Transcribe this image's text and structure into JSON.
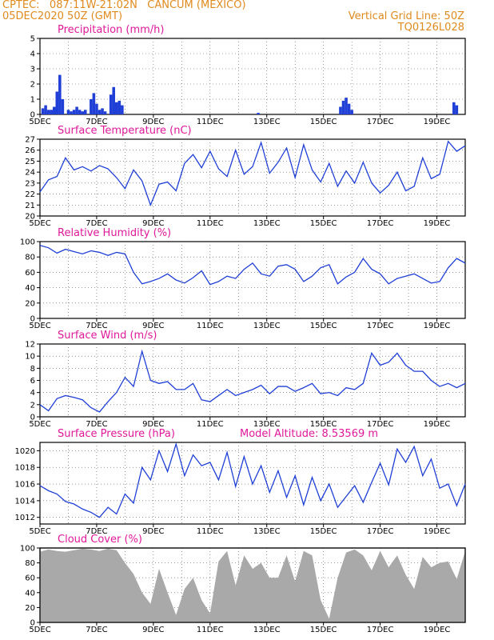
{
  "header": {
    "line1_left": "CPTEC:   087:11W-21:02N   CANCUM (MEXICO)",
    "line2_left": "05DEC2020 50Z (GMT)",
    "line2_right": "Vertical Grid Line: 50Z",
    "line3_right": "TQ0126L028"
  },
  "colors": {
    "header": "#e08a1e",
    "title": "#e0189a",
    "series": "#1f3fd6",
    "bars": "#1f3fd6",
    "cloud": "#a9a9a9"
  },
  "chart_data": [
    {
      "type": "bar",
      "title": "Precipitation (mm/h)",
      "ylim": [
        0,
        5
      ],
      "yticks": [
        0,
        1,
        2,
        3,
        4,
        5
      ],
      "xticks": [
        "5DEC",
        "7DEC",
        "9DEC",
        "11DEC",
        "13DEC",
        "15DEC",
        "17DEC",
        "19DEC"
      ],
      "x": [
        5.1,
        5.2,
        5.3,
        5.4,
        5.5,
        5.6,
        5.7,
        5.8,
        6.0,
        6.1,
        6.2,
        6.3,
        6.4,
        6.5,
        6.6,
        6.8,
        6.9,
        7.0,
        7.1,
        7.2,
        7.3,
        7.5,
        7.6,
        7.7,
        7.8,
        7.9,
        12.7,
        15.6,
        15.7,
        15.8,
        15.9,
        16.0,
        19.6,
        19.7
      ],
      "values": [
        0.4,
        0.6,
        0.3,
        0.3,
        0.5,
        1.5,
        2.6,
        1.0,
        0.3,
        0.2,
        0.3,
        0.5,
        0.3,
        0.2,
        0.3,
        1.0,
        1.4,
        0.7,
        0.3,
        0.4,
        0.2,
        1.3,
        1.8,
        0.8,
        0.9,
        0.6,
        0.1,
        0.5,
        0.9,
        1.1,
        0.7,
        0.3,
        0.8,
        0.6
      ]
    },
    {
      "type": "line",
      "title": "Surface Temperature (nC)",
      "ylim": [
        20,
        27
      ],
      "yticks": [
        20,
        21,
        22,
        23,
        24,
        25,
        26,
        27
      ],
      "xticks": [
        "5DEC",
        "7DEC",
        "9DEC",
        "11DEC",
        "13DEC",
        "15DEC",
        "17DEC",
        "19DEC"
      ],
      "x": [
        5.0,
        5.3,
        5.6,
        5.9,
        6.2,
        6.5,
        6.8,
        7.1,
        7.4,
        7.7,
        8.0,
        8.3,
        8.6,
        8.9,
        9.2,
        9.5,
        9.8,
        10.1,
        10.4,
        10.7,
        11.0,
        11.3,
        11.6,
        11.9,
        12.2,
        12.5,
        12.8,
        13.1,
        13.4,
        13.7,
        14.0,
        14.3,
        14.6,
        14.9,
        15.2,
        15.5,
        15.8,
        16.1,
        16.4,
        16.7,
        17.0,
        17.3,
        17.6,
        17.9,
        18.2,
        18.5,
        18.8,
        19.1,
        19.4,
        19.7,
        20.0
      ],
      "values": [
        22.2,
        23.3,
        23.6,
        25.3,
        24.2,
        24.5,
        24.1,
        24.6,
        24.3,
        23.5,
        22.5,
        24.2,
        23.2,
        21.0,
        22.9,
        23.1,
        22.3,
        24.8,
        25.6,
        24.4,
        25.9,
        24.3,
        23.6,
        26.0,
        23.8,
        24.5,
        26.7,
        23.9,
        24.9,
        26.2,
        23.5,
        26.5,
        24.2,
        23.1,
        24.8,
        22.7,
        24.1,
        23.0,
        24.9,
        23.0,
        22.1,
        22.8,
        24.0,
        22.3,
        22.7,
        25.3,
        23.4,
        23.8,
        26.8,
        25.9,
        26.4
      ]
    },
    {
      "type": "line",
      "title": "Relative Humidity (%)",
      "ylim": [
        0,
        100
      ],
      "yticks": [
        0,
        20,
        40,
        60,
        80,
        100
      ],
      "xticks": [
        "5DEC",
        "7DEC",
        "9DEC",
        "11DEC",
        "13DEC",
        "15DEC",
        "17DEC",
        "19DEC"
      ],
      "x": [
        5.0,
        5.3,
        5.6,
        5.9,
        6.2,
        6.5,
        6.8,
        7.1,
        7.4,
        7.7,
        8.0,
        8.3,
        8.6,
        8.9,
        9.2,
        9.5,
        9.8,
        10.1,
        10.4,
        10.7,
        11.0,
        11.3,
        11.6,
        11.9,
        12.2,
        12.5,
        12.8,
        13.1,
        13.4,
        13.7,
        14.0,
        14.3,
        14.6,
        14.9,
        15.2,
        15.5,
        15.8,
        16.1,
        16.4,
        16.7,
        17.0,
        17.3,
        17.6,
        17.9,
        18.2,
        18.5,
        18.8,
        19.1,
        19.4,
        19.7,
        20.0
      ],
      "values": [
        95,
        92,
        85,
        90,
        87,
        84,
        88,
        86,
        82,
        86,
        84,
        60,
        45,
        48,
        52,
        58,
        50,
        46,
        53,
        62,
        44,
        48,
        55,
        52,
        64,
        72,
        58,
        55,
        68,
        70,
        64,
        48,
        55,
        66,
        70,
        45,
        54,
        60,
        78,
        64,
        58,
        45,
        52,
        55,
        58,
        52,
        46,
        48,
        66,
        78,
        72
      ]
    },
    {
      "type": "line",
      "title": "Surface Wind (m/s)",
      "ylim": [
        0,
        12
      ],
      "yticks": [
        0,
        2,
        4,
        6,
        8,
        10,
        12
      ],
      "xticks": [
        "5DEC",
        "7DEC",
        "9DEC",
        "11DEC",
        "13DEC",
        "15DEC",
        "17DEC",
        "19DEC"
      ],
      "x": [
        5.0,
        5.3,
        5.6,
        5.9,
        6.2,
        6.5,
        6.8,
        7.1,
        7.4,
        7.7,
        8.0,
        8.3,
        8.6,
        8.9,
        9.2,
        9.5,
        9.8,
        10.1,
        10.4,
        10.7,
        11.0,
        11.3,
        11.6,
        11.9,
        12.2,
        12.5,
        12.8,
        13.1,
        13.4,
        13.7,
        14.0,
        14.3,
        14.6,
        14.9,
        15.2,
        15.5,
        15.8,
        16.1,
        16.4,
        16.7,
        17.0,
        17.3,
        17.6,
        17.9,
        18.2,
        18.5,
        18.8,
        19.1,
        19.4,
        19.7,
        20.0
      ],
      "values": [
        2.0,
        1.0,
        3.0,
        3.5,
        3.2,
        2.8,
        1.5,
        0.8,
        2.5,
        4.0,
        6.5,
        5.0,
        10.8,
        6.0,
        5.5,
        5.8,
        4.5,
        4.5,
        5.5,
        2.8,
        2.5,
        3.5,
        4.5,
        3.5,
        4.0,
        4.5,
        5.2,
        3.8,
        5.0,
        5.0,
        4.2,
        4.8,
        5.5,
        3.8,
        4.0,
        3.5,
        4.8,
        4.5,
        5.5,
        10.5,
        8.5,
        9.0,
        10.5,
        8.5,
        7.5,
        7.5,
        6.0,
        5.0,
        5.5,
        4.8,
        5.5
      ]
    },
    {
      "type": "line",
      "title": "Surface Pressure (hPa)",
      "annotation": "Model Altitude: 8.53569 m",
      "ylim": [
        1011.2,
        1021
      ],
      "yticks": [
        1012,
        1014,
        1016,
        1018,
        1020
      ],
      "xticks": [
        "5DEC",
        "7DEC",
        "9DEC",
        "11DEC",
        "13DEC",
        "15DEC",
        "17DEC",
        "19DEC"
      ],
      "x": [
        5.0,
        5.3,
        5.6,
        5.9,
        6.2,
        6.5,
        6.8,
        7.1,
        7.4,
        7.7,
        8.0,
        8.3,
        8.6,
        8.9,
        9.2,
        9.5,
        9.8,
        10.1,
        10.4,
        10.7,
        11.0,
        11.3,
        11.6,
        11.9,
        12.2,
        12.5,
        12.8,
        13.1,
        13.4,
        13.7,
        14.0,
        14.3,
        14.6,
        14.9,
        15.2,
        15.5,
        15.8,
        16.1,
        16.4,
        16.7,
        17.0,
        17.3,
        17.6,
        17.9,
        18.2,
        18.5,
        18.8,
        19.1,
        19.4,
        19.7,
        20.0
      ],
      "values": [
        1015.8,
        1015.2,
        1014.8,
        1013.9,
        1013.6,
        1013.0,
        1012.6,
        1012.0,
        1013.2,
        1012.4,
        1014.8,
        1013.7,
        1018.0,
        1016.5,
        1020.0,
        1017.5,
        1020.8,
        1017.0,
        1019.5,
        1018.2,
        1018.6,
        1016.5,
        1019.8,
        1015.7,
        1019.3,
        1016.0,
        1018.2,
        1015.0,
        1017.6,
        1014.4,
        1017.0,
        1013.5,
        1016.8,
        1014.0,
        1016.0,
        1013.2,
        1014.5,
        1015.8,
        1013.8,
        1016.2,
        1018.5,
        1015.9,
        1020.2,
        1018.6,
        1020.5,
        1017.0,
        1019.0,
        1015.5,
        1016.0,
        1013.4,
        1016.0
      ]
    },
    {
      "type": "area",
      "title": "Cloud Cover (%)",
      "ylim": [
        0,
        100
      ],
      "yticks": [
        0,
        20,
        40,
        60,
        80,
        100
      ],
      "xticks": [
        "5DEC",
        "7DEC",
        "9DEC",
        "11DEC",
        "13DEC",
        "15DEC",
        "17DEC",
        "19DEC"
      ],
      "x": [
        5.0,
        5.3,
        5.6,
        5.9,
        6.2,
        6.5,
        6.8,
        7.1,
        7.4,
        7.7,
        8.0,
        8.3,
        8.6,
        8.9,
        9.2,
        9.5,
        9.8,
        10.1,
        10.4,
        10.7,
        11.0,
        11.3,
        11.6,
        11.9,
        12.2,
        12.5,
        12.8,
        13.1,
        13.4,
        13.7,
        14.0,
        14.3,
        14.6,
        14.9,
        15.2,
        15.5,
        15.8,
        16.1,
        16.4,
        16.7,
        17.0,
        17.3,
        17.6,
        17.9,
        18.2,
        18.5,
        18.8,
        19.1,
        19.4,
        19.7,
        20.0
      ],
      "values": [
        95,
        98,
        96,
        95,
        97,
        99,
        98,
        96,
        99,
        97,
        80,
        65,
        40,
        25,
        72,
        40,
        10,
        45,
        60,
        30,
        12,
        82,
        96,
        50,
        90,
        72,
        80,
        60,
        60,
        90,
        55,
        96,
        90,
        30,
        5,
        60,
        94,
        98,
        90,
        70,
        96,
        74,
        90,
        64,
        45,
        88,
        74,
        80,
        82,
        58,
        96
      ]
    }
  ]
}
